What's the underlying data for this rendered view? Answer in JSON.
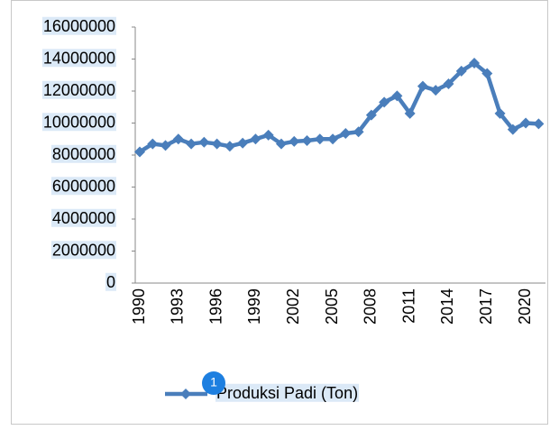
{
  "chart_data": {
    "type": "line",
    "categories": [
      "1990",
      null,
      null,
      "1993",
      null,
      null,
      "1996",
      null,
      null,
      "1999",
      null,
      null,
      "2002",
      null,
      null,
      "2005",
      null,
      null,
      "2008",
      null,
      null,
      "2011",
      null,
      null,
      "2014",
      null,
      null,
      "2017",
      null,
      null,
      "2020",
      null
    ],
    "series": [
      {
        "name": "Produksi Padi (Ton)",
        "color": "#4a7ebb",
        "values": [
          8200000,
          8700000,
          8600000,
          9000000,
          8700000,
          8800000,
          8700000,
          8550000,
          8750000,
          9000000,
          9250000,
          8700000,
          8850000,
          8900000,
          9000000,
          9000000,
          9350000,
          9450000,
          10500000,
          11300000,
          11700000,
          10600000,
          12300000,
          12050000,
          12450000,
          13250000,
          13750000,
          13100000,
          10600000,
          9600000,
          10000000,
          9950000
        ]
      }
    ],
    "ylim": [
      0,
      16000000
    ],
    "yticks": [
      0,
      2000000,
      4000000,
      6000000,
      8000000,
      10000000,
      12000000,
      14000000,
      16000000
    ],
    "grid": false,
    "legend": "bottom"
  },
  "badge": "1"
}
